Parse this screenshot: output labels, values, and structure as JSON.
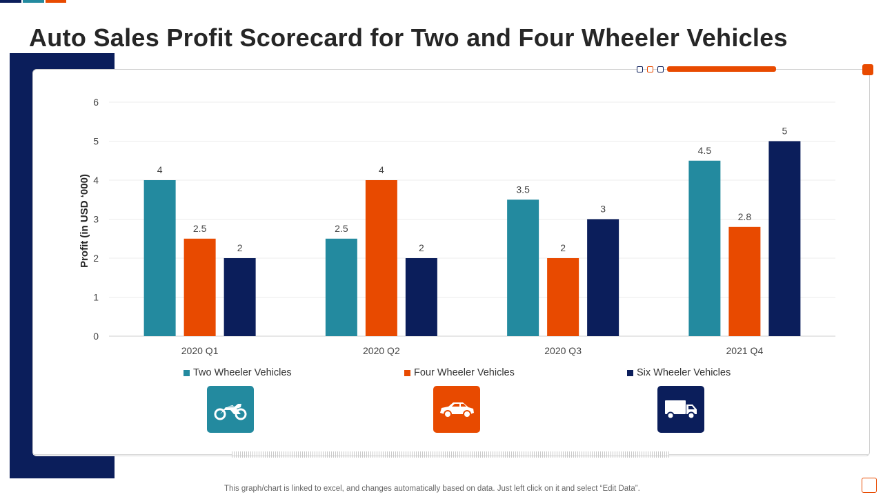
{
  "title": "Auto Sales Profit Scorecard for Two and Four Wheeler Vehicles",
  "footer_note": "This graph/chart is linked to excel,  and changes automatically based on data. Just left click on it and select “Edit Data”.",
  "colors": {
    "navy": "#0b1e5b",
    "orange": "#e84a00",
    "teal": "#238a9f",
    "text_dark": "#262626"
  },
  "icons": {
    "two_wheeler": "motorcycle-icon",
    "four_wheeler": "car-icon",
    "six_wheeler": "truck-icon"
  },
  "chart_data": {
    "type": "bar",
    "categories": [
      "2020 Q1",
      "2020 Q2",
      "2020 Q3",
      "2021 Q4"
    ],
    "series": [
      {
        "name": "Two Wheeler Vehicles",
        "values": [
          4,
          2.5,
          3.5,
          4.5
        ],
        "color": "#238a9f"
      },
      {
        "name": "Four Wheeler Vehicles",
        "values": [
          2.5,
          4,
          2,
          2.8
        ],
        "color": "#e84a00"
      },
      {
        "name": "Six Wheeler Vehicles",
        "values": [
          2,
          2,
          3,
          5
        ],
        "color": "#0b1e5b"
      }
    ],
    "ylabel": "Profit (in USD ‘000)",
    "ylim": [
      0,
      6
    ],
    "yticks": [
      "0",
      "1",
      "2",
      "3",
      "4",
      "5",
      "6"
    ],
    "grid": true,
    "legend_position": "bottom",
    "data_labels": true
  }
}
